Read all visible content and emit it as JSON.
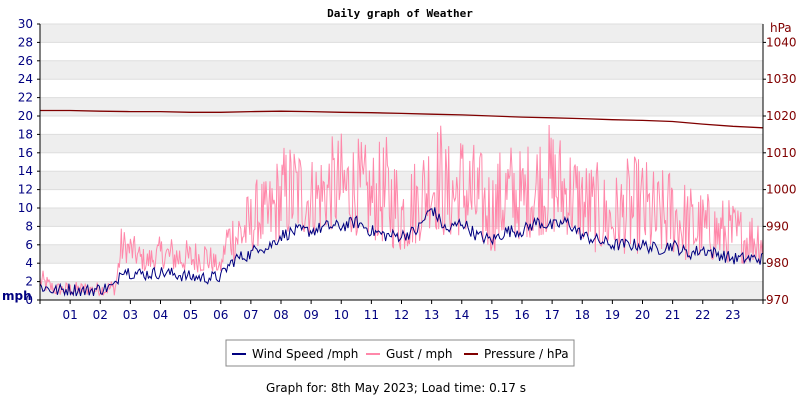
{
  "chart_data": {
    "type": "line",
    "title": "Daily graph of Weather",
    "x_tick_labels": [
      "01",
      "02",
      "03",
      "04",
      "05",
      "06",
      "07",
      "08",
      "09",
      "10",
      "11",
      "12",
      "13",
      "14",
      "15",
      "16",
      "17",
      "18",
      "19",
      "20",
      "21",
      "22",
      "23"
    ],
    "x_range_hours": [
      0,
      24
    ],
    "y_left": {
      "unit_label": "mph",
      "range": [
        0,
        30
      ],
      "ticks": [
        "0",
        "2",
        "4",
        "6",
        "8",
        "10",
        "12",
        "14",
        "16",
        "18",
        "20",
        "22",
        "24",
        "26",
        "28",
        "30"
      ]
    },
    "y_right": {
      "unit_label": "hPa",
      "range": [
        970,
        1045
      ],
      "ticks": [
        "970",
        "980",
        "990",
        "1000",
        "1010",
        "1020",
        "1030",
        "1040"
      ]
    },
    "grid": true,
    "legend_position": "bottom",
    "series": [
      {
        "name": "Wind Speed /mph",
        "axis": "left",
        "color": "#000080",
        "x": [
          0,
          0.5,
          1,
          1.5,
          2,
          2.5,
          2.7,
          3,
          3.5,
          4,
          4.5,
          5,
          5.5,
          6,
          6.2,
          6.5,
          7,
          7.3,
          7.5,
          8,
          8.5,
          9,
          9.5,
          10,
          10.5,
          11,
          11.5,
          12,
          12.5,
          13,
          13.3,
          13.5,
          14,
          14.5,
          15,
          15.5,
          16,
          16.5,
          17,
          17.5,
          18,
          18.5,
          19,
          19.5,
          20,
          20.5,
          21,
          21.5,
          22,
          22.5,
          23,
          23.5,
          24
        ],
        "values": [
          1.5,
          1.0,
          1.2,
          1.0,
          1.2,
          1.5,
          3.5,
          3.0,
          2.8,
          3.0,
          2.8,
          2.5,
          2.4,
          2.5,
          3.5,
          4.5,
          5.0,
          6.0,
          5.5,
          7.0,
          7.5,
          7.5,
          8.0,
          8.0,
          8.5,
          7.5,
          7.0,
          7.0,
          7.5,
          10.0,
          8.5,
          7.5,
          8.5,
          7.0,
          6.5,
          7.5,
          7.5,
          8.5,
          8.0,
          8.5,
          7.0,
          6.5,
          6.0,
          6.0,
          6.0,
          5.5,
          6.0,
          5.0,
          5.5,
          5.0,
          4.5,
          4.5,
          4.5
        ]
      },
      {
        "name": "Gust / mph",
        "axis": "left",
        "color": "#ff88aa",
        "x": [
          0,
          0.5,
          1,
          1.5,
          2,
          2.5,
          2.7,
          3,
          3.5,
          4,
          4.5,
          5,
          5.5,
          6,
          6.2,
          6.5,
          7,
          7.3,
          7.5,
          8,
          8.5,
          9,
          9.5,
          10,
          10.5,
          11,
          11.5,
          12,
          12.5,
          13,
          13.3,
          13.5,
          14,
          14.5,
          15,
          15.5,
          16,
          16.5,
          17,
          17.5,
          18,
          18.5,
          19,
          19.5,
          20,
          20.5,
          21,
          21.5,
          22,
          22.5,
          23,
          23.5,
          24
        ],
        "low": [
          1.0,
          0.5,
          0.5,
          0.5,
          0.5,
          0.5,
          4.0,
          4.0,
          3.0,
          3.5,
          3.0,
          3.0,
          3.0,
          3.0,
          5.0,
          4.0,
          5.0,
          6.0,
          5.0,
          6.5,
          7.0,
          7.0,
          7.5,
          7.5,
          7.0,
          6.5,
          6.0,
          5.0,
          6.0,
          8.0,
          7.0,
          6.5,
          7.0,
          6.0,
          5.0,
          6.5,
          6.5,
          7.0,
          7.0,
          7.0,
          6.0,
          5.0,
          5.0,
          5.0,
          5.0,
          4.5,
          5.0,
          4.0,
          4.5,
          4.0,
          4.0,
          4.0,
          4.0
        ],
        "values": [
          3.5,
          2.0,
          2.0,
          2.0,
          2.0,
          2.5,
          8.0,
          7.5,
          5.5,
          7.0,
          7.0,
          6.5,
          7.0,
          4.0,
          9.0,
          11.0,
          12.0,
          14.0,
          13.0,
          17.0,
          18.0,
          16.0,
          17.5,
          18.5,
          18.0,
          16.5,
          18.0,
          15.0,
          16.0,
          19.5,
          20.0,
          17.0,
          19.0,
          17.0,
          15.0,
          18.0,
          16.5,
          19.0,
          19.5,
          18.0,
          16.0,
          15.0,
          13.5,
          15.5,
          16.0,
          14.0,
          15.0,
          13.0,
          12.0,
          11.5,
          11.0,
          10.0,
          10.5
        ]
      },
      {
        "name": "Pressure / hPa",
        "axis": "right",
        "color": "#800000",
        "x": [
          0,
          1,
          2,
          3,
          4,
          5,
          6,
          7,
          8,
          9,
          10,
          11,
          12,
          13,
          14,
          15,
          16,
          17,
          18,
          19,
          20,
          21,
          22,
          23,
          24
        ],
        "values": [
          1021.5,
          1021.5,
          1021.3,
          1021.2,
          1021.2,
          1021.0,
          1021.0,
          1021.2,
          1021.3,
          1021.2,
          1021.0,
          1020.9,
          1020.7,
          1020.5,
          1020.3,
          1020.0,
          1019.7,
          1019.5,
          1019.3,
          1019.0,
          1018.8,
          1018.5,
          1017.8,
          1017.2,
          1016.8
        ]
      }
    ]
  },
  "footer": {
    "text": "Graph for: 8th May 2023; Load time: 0.17 s"
  }
}
